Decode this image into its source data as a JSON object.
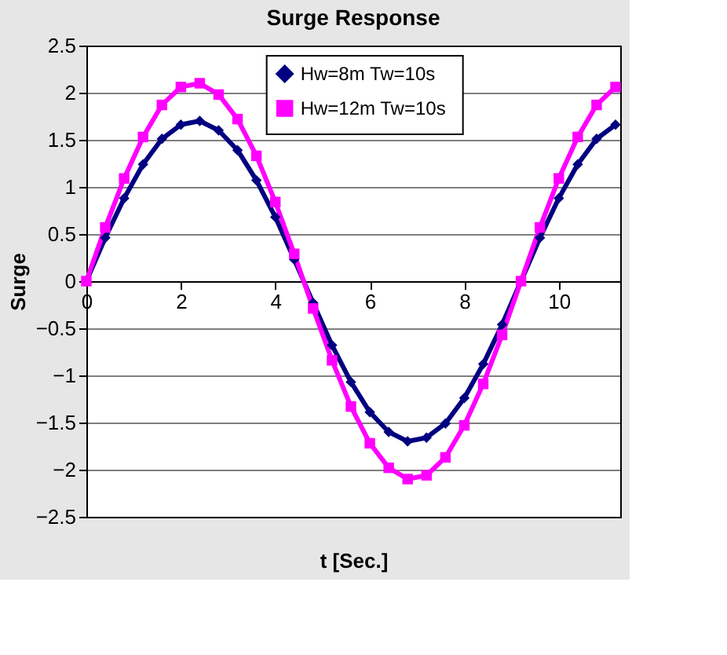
{
  "chart_data": {
    "type": "line",
    "title": "Surge Response",
    "xlabel": "t [Sec.]",
    "ylabel": "Surge",
    "x": [
      0,
      0.4,
      0.8,
      1.2,
      1.6,
      2.0,
      2.4,
      2.8,
      3.2,
      3.6,
      4.0,
      4.4,
      4.8,
      5.2,
      5.6,
      6.0,
      6.4,
      6.8,
      7.2,
      7.6,
      8.0,
      8.4,
      8.8,
      9.2,
      9.6,
      10.0,
      10.4,
      10.8,
      11.2
    ],
    "series": [
      {
        "name": "Hw=8m  Tw=10s",
        "color": "#000080",
        "marker": "diamond",
        "values": [
          0,
          0.46,
          0.88,
          1.24,
          1.51,
          1.66,
          1.7,
          1.6,
          1.39,
          1.07,
          0.68,
          0.23,
          -0.23,
          -0.68,
          -1.07,
          -1.39,
          -1.6,
          -1.7,
          -1.66,
          -1.51,
          -1.24,
          -0.88,
          -0.46,
          0,
          0.46,
          0.88,
          1.24,
          1.51,
          1.66
        ]
      },
      {
        "name": "Hw=12m  Tw=10s",
        "color": "#ff00ff",
        "marker": "square",
        "values": [
          0,
          0.57,
          1.09,
          1.53,
          1.87,
          2.06,
          2.1,
          1.98,
          1.72,
          1.33,
          0.84,
          0.29,
          -0.29,
          -0.84,
          -1.33,
          -1.72,
          -1.98,
          -2.1,
          -2.06,
          -1.87,
          -1.53,
          -1.09,
          -0.57,
          0,
          0.57,
          1.09,
          1.53,
          1.87,
          2.06
        ]
      }
    ],
    "xlim": [
      0,
      11.3
    ],
    "xticks": [
      0,
      2,
      4,
      6,
      8,
      10
    ],
    "ylim": [
      -2.5,
      2.5
    ],
    "yticks": [
      -2.5,
      -2,
      -1.5,
      -1,
      -0.5,
      0,
      0.5,
      1,
      1.5,
      2,
      2.5
    ],
    "grid": "y",
    "legend": "top right",
    "line_style": "solid"
  }
}
